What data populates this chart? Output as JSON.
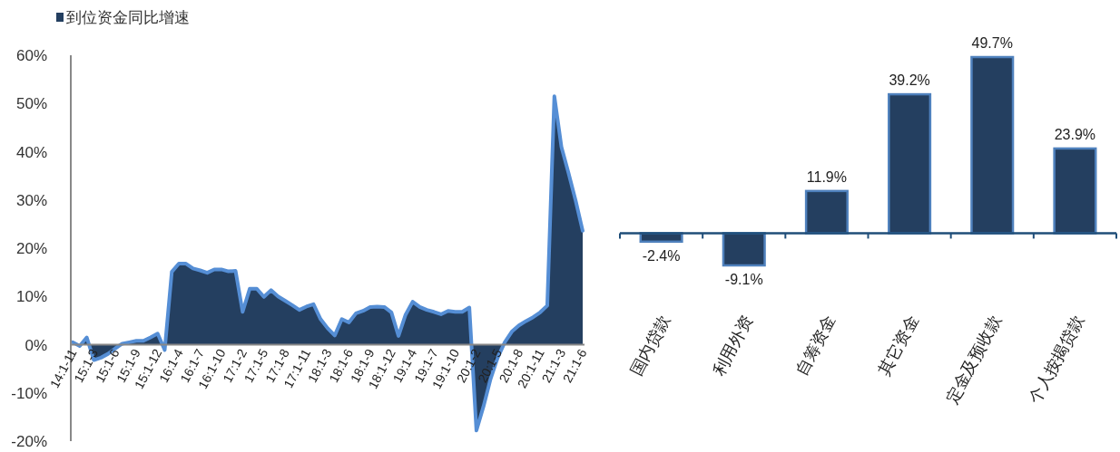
{
  "chart_data": [
    {
      "type": "area",
      "categories": [
        "14:1-11",
        null,
        null,
        "15:1-3",
        null,
        null,
        "15:1-6",
        null,
        null,
        "15:1-9",
        null,
        null,
        "15:1-12",
        null,
        null,
        "16:1-4",
        null,
        null,
        "16:1-7",
        null,
        null,
        "16:1-10",
        null,
        null,
        "17:1-2",
        null,
        null,
        "17:1-5",
        null,
        null,
        "17:1-8",
        null,
        null,
        "17:1-11",
        null,
        null,
        "18:1-3",
        null,
        null,
        "18:1-6",
        null,
        null,
        "18:1-9",
        null,
        null,
        "18:1-12",
        null,
        null,
        "19:1-4",
        null,
        null,
        "19:1-7",
        null,
        null,
        "19:1-10",
        null,
        null,
        "20:1-2",
        null,
        null,
        "20:1-5",
        null,
        null,
        "20:1-8",
        null,
        null,
        "20:1-11",
        null,
        null,
        "21:1-3",
        null,
        null,
        "21:1-6"
      ],
      "series": [
        {
          "name": "到位资金同比增速",
          "color": "#243f60",
          "values": [
            0.5,
            -0.3,
            1.5,
            -3.2,
            -2.7,
            -1.9,
            -0.8,
            0.2,
            0.5,
            0.8,
            0.8,
            1.5,
            2.3,
            -1.1,
            15.1,
            16.8,
            16.8,
            15.8,
            15.4,
            14.9,
            15.6,
            15.6,
            15.2,
            15.3,
            6.8,
            11.6,
            11.6,
            9.9,
            11.3,
            10.0,
            9.1,
            8.2,
            7.2,
            7.9,
            8.4,
            5.3,
            3.4,
            1.9,
            5.3,
            4.6,
            6.5,
            7.0,
            7.8,
            7.9,
            7.8,
            6.7,
            1.8,
            6.2,
            8.9,
            7.8,
            7.2,
            6.8,
            6.3,
            7.0,
            6.8,
            6.8,
            7.7,
            -17.8,
            -12.8,
            -7.1,
            -2.7,
            0.5,
            2.7,
            4.0,
            4.9,
            5.7,
            6.7,
            8.1,
            51.5,
            41.0,
            35.6,
            29.9,
            23.6
          ]
        }
      ],
      "ylim": [
        -20,
        60
      ],
      "yticks": [
        {
          "value": -20,
          "label": "-20%"
        },
        {
          "value": -10,
          "label": "-10%"
        },
        {
          "value": 0,
          "label": "0%"
        },
        {
          "value": 10,
          "label": "10%"
        },
        {
          "value": 20,
          "label": "20%"
        },
        {
          "value": 30,
          "label": "30%"
        },
        {
          "value": 40,
          "label": "40%"
        },
        {
          "value": 50,
          "label": "50%"
        },
        {
          "value": 60,
          "label": "60%"
        }
      ],
      "legend": "top left"
    },
    {
      "type": "bar",
      "categories": [
        "国内贷款",
        "利用外资",
        "自筹资金",
        "其它资金",
        "定金及预收款",
        "个人按揭贷款"
      ],
      "values": [
        -2.4,
        -9.1,
        11.9,
        39.2,
        49.7,
        23.9
      ],
      "value_labels": [
        "-2.4%",
        "-9.1%",
        "11.9%",
        "39.2%",
        "49.7%",
        "23.9%"
      ],
      "color": "#243f60",
      "ref_lines": [
        {
          "axis": "y",
          "value": 0,
          "color": "#1f4e79"
        }
      ]
    }
  ]
}
